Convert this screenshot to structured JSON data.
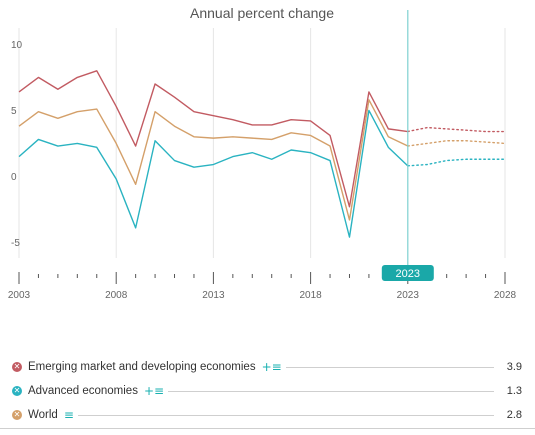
{
  "chart_data": {
    "type": "line",
    "title": "Annual percent change",
    "x_ticks": [
      2003,
      2008,
      2013,
      2018,
      2023,
      2028
    ],
    "y_ticks": [
      10,
      5,
      0,
      -5
    ],
    "xlim": [
      2003,
      2028
    ],
    "ylim": [
      -7,
      11
    ],
    "grid": "vertical",
    "current_year_label": "2023",
    "current_year": 2023,
    "series": [
      {
        "name": "Emerging market and developing economies",
        "color": "#c25b62",
        "latest": "3.9",
        "x": [
          2003,
          2004,
          2005,
          2006,
          2007,
          2008,
          2009,
          2010,
          2011,
          2012,
          2013,
          2014,
          2015,
          2016,
          2017,
          2018,
          2019,
          2020,
          2021,
          2022,
          2023
        ],
        "values": [
          6.9,
          8.0,
          7.1,
          8.0,
          8.5,
          5.8,
          2.8,
          7.5,
          6.5,
          5.4,
          5.1,
          4.8,
          4.4,
          4.4,
          4.8,
          4.7,
          3.6,
          -1.8,
          6.9,
          4.1,
          3.9
        ],
        "projection_x": [
          2023,
          2024,
          2025,
          2026,
          2027,
          2028
        ],
        "projection_values": [
          3.9,
          4.2,
          4.1,
          4.0,
          3.9,
          3.9
        ]
      },
      {
        "name": "Advanced economies",
        "color": "#2ab3c1",
        "latest": "1.3",
        "x": [
          2003,
          2004,
          2005,
          2006,
          2007,
          2008,
          2009,
          2010,
          2011,
          2012,
          2013,
          2014,
          2015,
          2016,
          2017,
          2018,
          2019,
          2020,
          2021,
          2022,
          2023
        ],
        "values": [
          2.0,
          3.3,
          2.8,
          3.0,
          2.7,
          0.3,
          -3.4,
          3.2,
          1.7,
          1.2,
          1.4,
          2.0,
          2.3,
          1.8,
          2.5,
          2.3,
          1.7,
          -4.1,
          5.5,
          2.7,
          1.3
        ],
        "projection_x": [
          2023,
          2024,
          2025,
          2026,
          2027,
          2028
        ],
        "projection_values": [
          1.3,
          1.4,
          1.7,
          1.8,
          1.8,
          1.8
        ]
      },
      {
        "name": "World",
        "color": "#d4a06a",
        "latest": "2.8",
        "x": [
          2003,
          2004,
          2005,
          2006,
          2007,
          2008,
          2009,
          2010,
          2011,
          2012,
          2013,
          2014,
          2015,
          2016,
          2017,
          2018,
          2019,
          2020,
          2021,
          2022,
          2023
        ],
        "values": [
          4.3,
          5.4,
          4.9,
          5.4,
          5.6,
          3.0,
          -0.1,
          5.4,
          4.3,
          3.5,
          3.4,
          3.5,
          3.4,
          3.3,
          3.8,
          3.6,
          2.8,
          -2.8,
          6.3,
          3.5,
          2.8
        ],
        "projection_x": [
          2023,
          2024,
          2025,
          2026,
          2027,
          2028
        ],
        "projection_values": [
          2.8,
          3.0,
          3.2,
          3.2,
          3.1,
          3.0
        ]
      }
    ]
  },
  "legend": [
    {
      "label": "Emerging market and developing economies",
      "value": "3.9",
      "color": "#c25b62",
      "tools": "+≡"
    },
    {
      "label": "Advanced economies",
      "value": "1.3",
      "color": "#2ab3c1",
      "tools": "+≡"
    },
    {
      "label": "World",
      "value": "2.8",
      "color": "#d4a06a",
      "tools": "≡"
    }
  ]
}
